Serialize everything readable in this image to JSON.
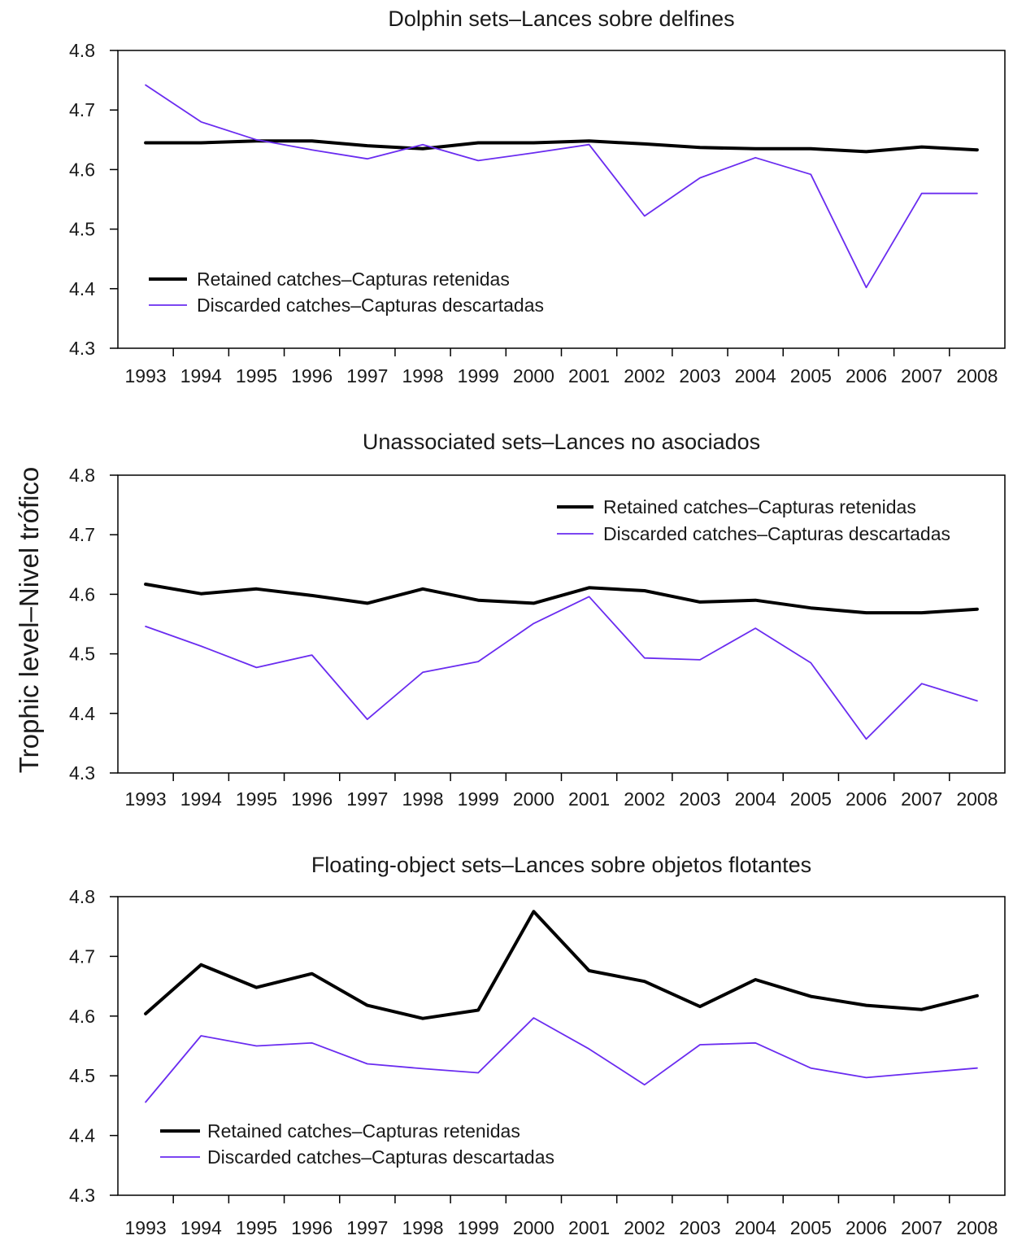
{
  "ylabel": "Trophic level–Nivel trófico",
  "colors": {
    "retained": "#000000",
    "discarded": "#6a2cf0"
  },
  "chart_data": [
    {
      "type": "line",
      "title": "Dolphin sets–Lances sobre delfines",
      "x": [
        "1993",
        "1994",
        "1995",
        "1996",
        "1997",
        "1998",
        "1999",
        "2000",
        "2001",
        "2002",
        "2003",
        "2004",
        "2005",
        "2006",
        "2007",
        "2008"
      ],
      "ylim": [
        4.3,
        4.8
      ],
      "yticks": [
        "4.3",
        "4.4",
        "4.5",
        "4.6",
        "4.7",
        "4.8"
      ],
      "legend_position": "bottom-left",
      "series": [
        {
          "name": "Retained catches–Capturas retenidas",
          "values": [
            4.645,
            4.645,
            4.648,
            4.648,
            4.64,
            4.635,
            4.645,
            4.645,
            4.648,
            4.643,
            4.637,
            4.635,
            4.635,
            4.63,
            4.638,
            4.633
          ]
        },
        {
          "name": "Discarded catches–Capturas descartadas",
          "values": [
            4.742,
            4.68,
            4.65,
            4.633,
            4.618,
            4.642,
            4.615,
            4.628,
            4.642,
            4.522,
            4.586,
            4.62,
            4.592,
            4.402,
            4.56,
            4.56
          ]
        }
      ]
    },
    {
      "type": "line",
      "title": "Unassociated sets–Lances no asociados",
      "x": [
        "1993",
        "1994",
        "1995",
        "1996",
        "1997",
        "1998",
        "1999",
        "2000",
        "2001",
        "2002",
        "2003",
        "2004",
        "2005",
        "2006",
        "2007",
        "2008"
      ],
      "ylim": [
        4.3,
        4.8
      ],
      "yticks": [
        "4.3",
        "4.4",
        "4.5",
        "4.6",
        "4.7",
        "4.8"
      ],
      "legend_position": "top-right",
      "series": [
        {
          "name": "Retained catches–Capturas retenidas",
          "values": [
            4.617,
            4.601,
            4.609,
            4.598,
            4.585,
            4.609,
            4.59,
            4.585,
            4.611,
            4.606,
            4.587,
            4.59,
            4.577,
            4.569,
            4.569,
            4.575
          ]
        },
        {
          "name": "Discarded catches–Capturas descartadas",
          "values": [
            4.546,
            4.513,
            4.477,
            4.498,
            4.39,
            4.469,
            4.487,
            4.551,
            4.596,
            4.493,
            4.49,
            4.543,
            4.485,
            4.357,
            4.45,
            4.421
          ]
        }
      ]
    },
    {
      "type": "line",
      "title": "Floating-object sets–Lances sobre objetos flotantes",
      "x": [
        "1993",
        "1994",
        "1995",
        "1996",
        "1997",
        "1998",
        "1999",
        "2000",
        "2001",
        "2002",
        "2003",
        "2004",
        "2005",
        "2006",
        "2007",
        "2008"
      ],
      "ylim": [
        4.3,
        4.8
      ],
      "yticks": [
        "4.3",
        "4.4",
        "4.5",
        "4.6",
        "4.7",
        "4.8"
      ],
      "legend_position": "bottom-left",
      "series": [
        {
          "name": "Retained catches–Capturas retenidas",
          "values": [
            4.604,
            4.686,
            4.648,
            4.671,
            4.618,
            4.596,
            4.61,
            4.775,
            4.676,
            4.658,
            4.616,
            4.661,
            4.633,
            4.618,
            4.611,
            4.634
          ]
        },
        {
          "name": "Discarded catches–Capturas descartadas",
          "values": [
            4.456,
            4.567,
            4.55,
            4.555,
            4.52,
            4.512,
            4.505,
            4.597,
            4.545,
            4.485,
            4.552,
            4.555,
            4.513,
            4.497,
            4.505,
            4.513
          ]
        }
      ]
    }
  ]
}
